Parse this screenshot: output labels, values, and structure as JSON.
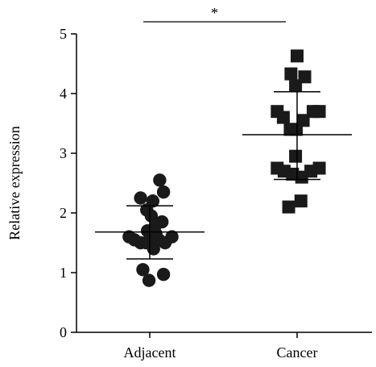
{
  "chart_data": {
    "type": "scatter",
    "title": "",
    "xlabel": "",
    "ylabel": "Relative expression",
    "ylim": [
      0,
      5
    ],
    "yticks": [
      0,
      1,
      2,
      3,
      4,
      5
    ],
    "categories": [
      "Adjacent",
      "Cancer"
    ],
    "grid": false,
    "legend": "none",
    "significance": {
      "between": [
        "Adjacent",
        "Cancer"
      ],
      "label": "*"
    },
    "series": [
      {
        "category": "Adjacent",
        "marker": "circle",
        "color": "#1a1a1a",
        "mean": 1.68,
        "sd_low": 1.23,
        "sd_high": 2.12,
        "points": [
          {
            "x": -0.12,
            "y": 2.25
          },
          {
            "x": 0.13,
            "y": 2.55
          },
          {
            "x": 0.04,
            "y": 2.2
          },
          {
            "x": 0.18,
            "y": 2.35
          },
          {
            "x": -0.04,
            "y": 2.05
          },
          {
            "x": 0.02,
            "y": 1.95
          },
          {
            "x": 0.16,
            "y": 1.85
          },
          {
            "x": -0.03,
            "y": 1.7
          },
          {
            "x": 0.06,
            "y": 1.75
          },
          {
            "x": 0.08,
            "y": 1.65
          },
          {
            "x": -0.27,
            "y": 1.6
          },
          {
            "x": 0.29,
            "y": 1.6
          },
          {
            "x": -0.2,
            "y": 1.55
          },
          {
            "x": -0.12,
            "y": 1.5
          },
          {
            "x": -0.05,
            "y": 1.5
          },
          {
            "x": 0.01,
            "y": 1.55
          },
          {
            "x": 0.12,
            "y": 1.55
          },
          {
            "x": 0.2,
            "y": 1.5
          },
          {
            "x": 0.05,
            "y": 1.4
          },
          {
            "x": -0.09,
            "y": 1.05
          },
          {
            "x": 0.18,
            "y": 0.97
          },
          {
            "x": -0.01,
            "y": 0.87
          }
        ]
      },
      {
        "category": "Cancer",
        "marker": "square",
        "color": "#1a1a1a",
        "mean": 3.31,
        "sd_low": 2.56,
        "sd_high": 4.03,
        "points": [
          {
            "x": 0.0,
            "y": 4.63
          },
          {
            "x": -0.08,
            "y": 4.33
          },
          {
            "x": 0.1,
            "y": 4.28
          },
          {
            "x": -0.02,
            "y": 4.13
          },
          {
            "x": -0.26,
            "y": 3.7
          },
          {
            "x": -0.18,
            "y": 3.6
          },
          {
            "x": 0.21,
            "y": 3.7
          },
          {
            "x": 0.29,
            "y": 3.7
          },
          {
            "x": 0.08,
            "y": 3.55
          },
          {
            "x": -0.09,
            "y": 3.4
          },
          {
            "x": -0.01,
            "y": 3.4
          },
          {
            "x": -0.02,
            "y": 2.95
          },
          {
            "x": -0.26,
            "y": 2.75
          },
          {
            "x": -0.17,
            "y": 2.7
          },
          {
            "x": -0.06,
            "y": 2.65
          },
          {
            "x": 0.06,
            "y": 2.6
          },
          {
            "x": 0.18,
            "y": 2.7
          },
          {
            "x": 0.29,
            "y": 2.75
          },
          {
            "x": -0.11,
            "y": 2.1
          },
          {
            "x": 0.05,
            "y": 2.2
          }
        ]
      }
    ]
  }
}
